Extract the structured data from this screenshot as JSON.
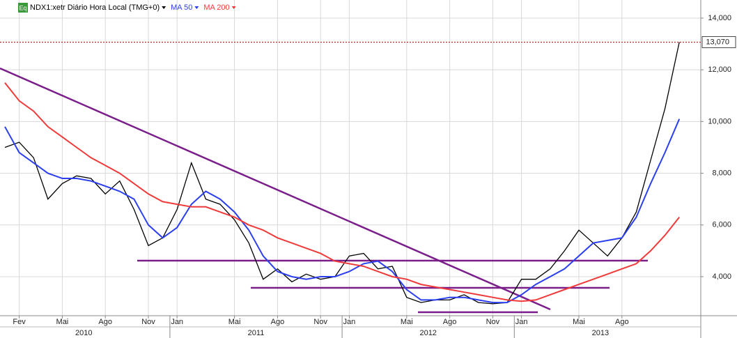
{
  "chart_data": {
    "type": "line",
    "badge": "Eq",
    "categories": [
      null,
      "Fev",
      null,
      null,
      "Mai",
      null,
      null,
      "Ago",
      null,
      null,
      "Nov",
      null,
      "Jan",
      null,
      null,
      null,
      "Mai",
      null,
      null,
      "Ago",
      null,
      null,
      "Nov",
      null,
      "Jan",
      null,
      null,
      null,
      "Mai",
      null,
      null,
      "Ago",
      null,
      null,
      "Nov",
      null,
      "Jan",
      null,
      null,
      null,
      "Mai",
      null,
      null,
      "Ago",
      null,
      null,
      null,
      null
    ],
    "years": [
      "2010",
      "2011",
      "2012",
      "2013"
    ],
    "series": [
      {
        "name": "NDX1:xetr Diário Hora Local (TMG+0)",
        "color": "#000000",
        "values": [
          9000,
          9200,
          8600,
          7000,
          7600,
          7900,
          7800,
          7200,
          7700,
          6600,
          5200,
          5500,
          6600,
          8400,
          7000,
          6800,
          6200,
          5300,
          3900,
          4300,
          3800,
          4100,
          3900,
          4000,
          4800,
          4900,
          4300,
          4400,
          3200,
          3000,
          3100,
          3100,
          3300,
          3000,
          2950,
          3000,
          3900,
          3900,
          4300,
          5000,
          5800,
          5300,
          4800,
          5500,
          6500,
          8500,
          10500,
          13070
        ]
      },
      {
        "name": "MA 50",
        "color": "#2b3ff0",
        "values": [
          9800,
          8800,
          8400,
          8000,
          7800,
          7800,
          7700,
          7500,
          7300,
          7000,
          6000,
          5500,
          5900,
          6800,
          7300,
          7000,
          6500,
          5800,
          4800,
          4200,
          4000,
          3900,
          4000,
          4000,
          4200,
          4500,
          4600,
          4200,
          3500,
          3100,
          3100,
          3200,
          3200,
          3100,
          3000,
          3000,
          3300,
          3700,
          4000,
          4300,
          4800,
          5300,
          5400,
          5500,
          6300,
          7600,
          8800,
          10100
        ]
      },
      {
        "name": "MA 200",
        "color": "#f03a3a",
        "values": [
          11500,
          10800,
          10400,
          9800,
          9400,
          9000,
          8600,
          8300,
          8000,
          7600,
          7200,
          6900,
          6800,
          6700,
          6700,
          6500,
          6300,
          6000,
          5800,
          5500,
          5300,
          5100,
          4900,
          4600,
          4500,
          4400,
          4200,
          4000,
          3900,
          3700,
          3600,
          3500,
          3400,
          3300,
          3200,
          3100,
          3050,
          3100,
          3300,
          3500,
          3700,
          3900,
          4100,
          4300,
          4500,
          5000,
          5600,
          6300
        ]
      }
    ],
    "last_price": {
      "value": 13070,
      "label": "13,070"
    },
    "ylim": [
      2490,
      14700
    ],
    "yticks": [
      {
        "value": 4000,
        "label": "4,000"
      },
      {
        "value": 6000,
        "label": "6,000"
      },
      {
        "value": 8000,
        "label": "8,000"
      },
      {
        "value": 10000,
        "label": "10,000"
      },
      {
        "value": 12000,
        "label": "12,000"
      },
      {
        "value": 14000,
        "label": "14,000"
      }
    ],
    "grid": true
  }
}
